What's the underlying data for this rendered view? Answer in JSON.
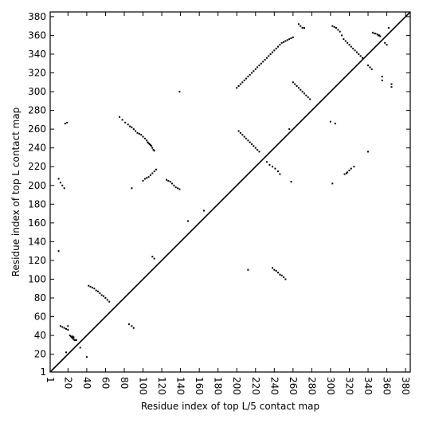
{
  "chart_data": {
    "type": "scatter",
    "title": "",
    "xlabel": "Residue index of top L/5 contact map",
    "ylabel": "Residue index of top L contact map",
    "xlim": [
      1,
      385
    ],
    "ylim": [
      1,
      385
    ],
    "xticks": [
      1,
      20,
      40,
      60,
      80,
      100,
      120,
      140,
      160,
      180,
      200,
      220,
      240,
      260,
      280,
      300,
      320,
      340,
      360,
      380
    ],
    "yticks": [
      1,
      20,
      40,
      60,
      80,
      100,
      120,
      140,
      160,
      180,
      200,
      220,
      240,
      260,
      280,
      300,
      320,
      340,
      360,
      380
    ],
    "grid": false,
    "diagonal": {
      "from": [
        1,
        1
      ],
      "to": [
        385,
        385
      ]
    },
    "series": [
      {
        "marker": "square",
        "color": "#000000",
        "points": [
          [
            22,
            40
          ],
          [
            23,
            39
          ],
          [
            24,
            38
          ],
          [
            25,
            37
          ],
          [
            26,
            36
          ],
          [
            27,
            35
          ],
          [
            28,
            35
          ],
          [
            29,
            35
          ],
          [
            25,
            39
          ],
          [
            26,
            38
          ],
          [
            42,
            93
          ],
          [
            44,
            92
          ],
          [
            46,
            91
          ],
          [
            48,
            90
          ],
          [
            50,
            88
          ],
          [
            52,
            87
          ],
          [
            54,
            85
          ],
          [
            56,
            83
          ],
          [
            58,
            82
          ],
          [
            60,
            80
          ],
          [
            62,
            78
          ],
          [
            64,
            76
          ],
          [
            12,
            50
          ],
          [
            14,
            49
          ],
          [
            16,
            48
          ],
          [
            18,
            47
          ],
          [
            20,
            50
          ],
          [
            20,
            46
          ],
          [
            18,
            22
          ],
          [
            85,
            52
          ],
          [
            88,
            50
          ],
          [
            90,
            48
          ],
          [
            75,
            273
          ],
          [
            78,
            270
          ],
          [
            81,
            267
          ],
          [
            84,
            265
          ],
          [
            86,
            263
          ],
          [
            88,
            262
          ],
          [
            90,
            260
          ],
          [
            92,
            258
          ],
          [
            94,
            256
          ],
          [
            96,
            255
          ],
          [
            98,
            254
          ],
          [
            100,
            252
          ],
          [
            102,
            250
          ],
          [
            104,
            248
          ],
          [
            105,
            246
          ],
          [
            106,
            245
          ],
          [
            107,
            244
          ],
          [
            108,
            243
          ],
          [
            109,
            242
          ],
          [
            110,
            240
          ],
          [
            111,
            238
          ],
          [
            112,
            237
          ],
          [
            100,
            205
          ],
          [
            102,
            207
          ],
          [
            104,
            208
          ],
          [
            106,
            209
          ],
          [
            108,
            211
          ],
          [
            110,
            213
          ],
          [
            112,
            215
          ],
          [
            114,
            217
          ],
          [
            125,
            206
          ],
          [
            127,
            205
          ],
          [
            129,
            204
          ],
          [
            131,
            202
          ],
          [
            133,
            200
          ],
          [
            135,
            198
          ],
          [
            137,
            197
          ],
          [
            139,
            196
          ],
          [
            110,
            124
          ],
          [
            112,
            122
          ],
          [
            10,
            207
          ],
          [
            12,
            203
          ],
          [
            14,
            200
          ],
          [
            16,
            197
          ],
          [
            17,
            266
          ],
          [
            19,
            267
          ],
          [
            10,
            130
          ],
          [
            40,
            17
          ],
          [
            33,
            27
          ],
          [
            148,
            162
          ],
          [
            165,
            173
          ],
          [
            139,
            300
          ],
          [
            88,
            197
          ],
          [
            200,
            304
          ],
          [
            202,
            306
          ],
          [
            204,
            308
          ],
          [
            206,
            310
          ],
          [
            208,
            312
          ],
          [
            210,
            314
          ],
          [
            212,
            316
          ],
          [
            214,
            318
          ],
          [
            216,
            320
          ],
          [
            218,
            322
          ],
          [
            220,
            324
          ],
          [
            222,
            326
          ],
          [
            224,
            328
          ],
          [
            226,
            330
          ],
          [
            228,
            332
          ],
          [
            230,
            334
          ],
          [
            232,
            336
          ],
          [
            234,
            338
          ],
          [
            236,
            340
          ],
          [
            238,
            342
          ],
          [
            240,
            344
          ],
          [
            242,
            346
          ],
          [
            244,
            348
          ],
          [
            246,
            350
          ],
          [
            248,
            352
          ],
          [
            250,
            353
          ],
          [
            252,
            354
          ],
          [
            254,
            355
          ],
          [
            256,
            356
          ],
          [
            258,
            357
          ],
          [
            260,
            358
          ],
          [
            266,
            372
          ],
          [
            268,
            370
          ],
          [
            270,
            368
          ],
          [
            272,
            368
          ],
          [
            260,
            310
          ],
          [
            262,
            308
          ],
          [
            264,
            306
          ],
          [
            266,
            304
          ],
          [
            268,
            302
          ],
          [
            270,
            300
          ],
          [
            272,
            298
          ],
          [
            274,
            296
          ],
          [
            276,
            294
          ],
          [
            278,
            292
          ],
          [
            202,
            258
          ],
          [
            204,
            256
          ],
          [
            206,
            254
          ],
          [
            208,
            252
          ],
          [
            210,
            250
          ],
          [
            212,
            248
          ],
          [
            214,
            246
          ],
          [
            216,
            244
          ],
          [
            218,
            242
          ],
          [
            220,
            240
          ],
          [
            222,
            238
          ],
          [
            224,
            236
          ],
          [
            232,
            225
          ],
          [
            235,
            222
          ],
          [
            238,
            220
          ],
          [
            241,
            218
          ],
          [
            244,
            215
          ],
          [
            246,
            212
          ],
          [
            238,
            112
          ],
          [
            240,
            110
          ],
          [
            242,
            109
          ],
          [
            244,
            107
          ],
          [
            246,
            105
          ],
          [
            248,
            104
          ],
          [
            250,
            102
          ],
          [
            252,
            100
          ],
          [
            256,
            260
          ],
          [
            258,
            204
          ],
          [
            212,
            110
          ],
          [
            302,
            370
          ],
          [
            304,
            369
          ],
          [
            306,
            368
          ],
          [
            308,
            366
          ],
          [
            310,
            364
          ],
          [
            312,
            360
          ],
          [
            314,
            356
          ],
          [
            316,
            354
          ],
          [
            318,
            352
          ],
          [
            320,
            350
          ],
          [
            322,
            348
          ],
          [
            324,
            346
          ],
          [
            326,
            344
          ],
          [
            328,
            342
          ],
          [
            330,
            340
          ],
          [
            332,
            338
          ],
          [
            334,
            336
          ],
          [
            300,
            268
          ],
          [
            305,
            266
          ],
          [
            315,
            212
          ],
          [
            317,
            213
          ],
          [
            318,
            214
          ],
          [
            320,
            216
          ],
          [
            322,
            218
          ],
          [
            325,
            220
          ],
          [
            302,
            202
          ],
          [
            340,
            236
          ],
          [
            340,
            328
          ],
          [
            342,
            326
          ],
          [
            344,
            324
          ],
          [
            345,
            363
          ],
          [
            347,
            362
          ],
          [
            348,
            362
          ],
          [
            350,
            361
          ],
          [
            351,
            360
          ],
          [
            352,
            360
          ],
          [
            353,
            359
          ],
          [
            355,
            316
          ],
          [
            355,
            312
          ],
          [
            358,
            352
          ],
          [
            360,
            350
          ],
          [
            362,
            368
          ],
          [
            365,
            308
          ],
          [
            365,
            305
          ]
        ]
      }
    ]
  }
}
